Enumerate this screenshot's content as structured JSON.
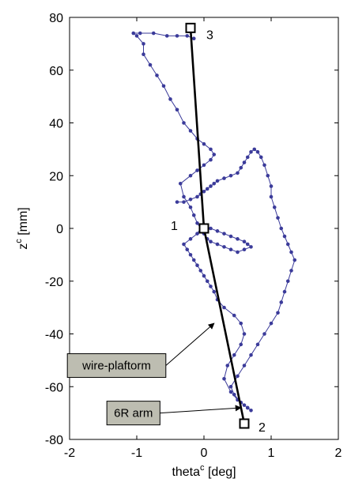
{
  "chart_data": {
    "type": "line",
    "xlabel": "theta",
    "xlabel_sup": "c",
    "xlabel_unit": " [deg]",
    "ylabel": "z",
    "ylabel_sup": "c",
    "ylabel_unit": " [mm]",
    "xlim": [
      -2,
      2
    ],
    "ylim": [
      -80,
      80
    ],
    "xticks": [
      -2,
      -1,
      0,
      1,
      2
    ],
    "yticks": [
      -80,
      -60,
      -40,
      -20,
      0,
      20,
      40,
      60,
      80
    ],
    "grid": false,
    "colors": {
      "trajectory": "#3b3b9a",
      "reference": "#000000",
      "box_fill": "#bdbdb1"
    },
    "series": [
      {
        "style": "blue-dotted-line",
        "x": [
          -0.15,
          -0.25,
          -0.4,
          -0.55,
          -0.75,
          -0.95,
          -1.05,
          -1.0,
          -0.9,
          -0.9,
          -0.8,
          -0.7,
          -0.6,
          -0.5,
          -0.4,
          -0.3,
          -0.2,
          -0.1,
          0.0,
          0.1,
          0.15,
          0.1,
          0.0,
          -0.1,
          -0.2,
          -0.35,
          -0.3,
          -0.2,
          -0.15,
          -0.1,
          -0.05,
          0.0,
          0.05,
          0.1,
          0.2,
          0.3,
          0.4,
          0.5,
          0.6,
          0.7,
          0.65,
          0.6,
          0.5,
          0.4,
          0.3,
          0.2,
          0.1,
          0.0,
          -0.05,
          -0.1,
          -0.2,
          -0.3,
          -0.25,
          -0.2,
          -0.15,
          -0.1,
          -0.05,
          0.0,
          0.05,
          0.1,
          0.15,
          0.2,
          0.3,
          0.45,
          0.55,
          0.6,
          0.55,
          0.45,
          0.35,
          0.3,
          0.4,
          0.5,
          0.6,
          0.65,
          0.7,
          0.65,
          0.55,
          0.45,
          0.4,
          0.5,
          0.6,
          0.7,
          0.8,
          0.9,
          1.0,
          1.1,
          1.15,
          1.2,
          1.25,
          1.3,
          1.35,
          1.3,
          1.25,
          1.2,
          1.15,
          1.1,
          1.05,
          1.0,
          1.0,
          0.95,
          0.9,
          0.85,
          0.8,
          0.75,
          0.7,
          0.65,
          0.6,
          0.55,
          0.5,
          0.4,
          0.3,
          0.2,
          0.15,
          0.1,
          0.05,
          0.0,
          -0.05,
          -0.1,
          -0.2,
          -0.3,
          -0.4
        ],
        "y": [
          72,
          73,
          73,
          73,
          74,
          74,
          74,
          73,
          70,
          66,
          62,
          58,
          54,
          49,
          45,
          40,
          37,
          34,
          32,
          30,
          28,
          26,
          24,
          22,
          20,
          17,
          12,
          8,
          5,
          2,
          0,
          -2,
          -4,
          -5,
          -6,
          -7,
          -8,
          -9,
          -8,
          -7,
          -6,
          -5,
          -4,
          -3,
          -2,
          -1,
          0,
          1,
          0,
          -2,
          -4,
          -6,
          -8,
          -10,
          -12,
          -14,
          -16,
          -18,
          -20,
          -22,
          -24,
          -27,
          -30,
          -33,
          -36,
          -40,
          -44,
          -48,
          -52,
          -57,
          -62,
          -65,
          -67,
          -68,
          -69,
          -68,
          -66,
          -63,
          -60,
          -56,
          -52,
          -48,
          -44,
          -40,
          -36,
          -32,
          -28,
          -24,
          -20,
          -16,
          -12,
          -9,
          -6,
          -3,
          0,
          4,
          8,
          12,
          16,
          20,
          24,
          27,
          29,
          30,
          29,
          27,
          25,
          23,
          21,
          20,
          19,
          18,
          17,
          16,
          15,
          14,
          13,
          12,
          11,
          10,
          10
        ]
      },
      {
        "style": "black-thick-line",
        "x": [
          -0.2,
          0.0,
          0.6
        ],
        "y": [
          76,
          0,
          -74
        ]
      }
    ],
    "markers": [
      {
        "label": "3",
        "x": -0.2,
        "y": 76
      },
      {
        "label": "1",
        "x": 0.0,
        "y": 0
      },
      {
        "label": "2",
        "x": 0.6,
        "y": -74
      }
    ],
    "annotations": [
      {
        "text": "wire-plaftorm",
        "x": -1.3,
        "y": -52,
        "arrow_to": [
          0.15,
          -36
        ]
      },
      {
        "text": "6R arm",
        "x": -1.05,
        "y": -70,
        "arrow_to": [
          0.55,
          -68
        ]
      }
    ]
  }
}
